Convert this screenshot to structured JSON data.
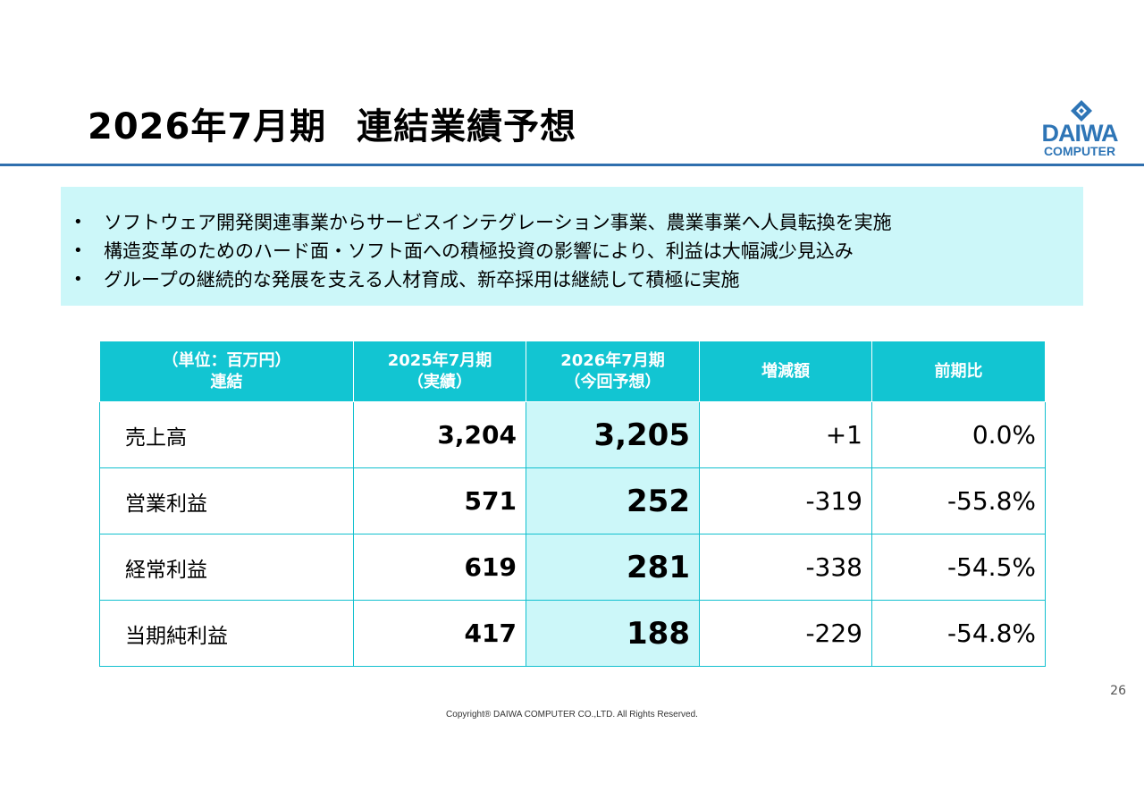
{
  "title": {
    "period": "2026年7月期",
    "subject": "連結業績予想"
  },
  "logo": {
    "main": "DAIWA",
    "sub": "COMPUTER",
    "color": "#2e75b6"
  },
  "summary": {
    "background": "#ccf7f9",
    "bullet": "•",
    "points": [
      "ソフトウェア開発関連事業からサービスインテグレーション事業、農業事業へ人員転換を実施",
      "構造変革のためのハード面・ソフト面への積極投資の影響により、利益は大幅減少見込み",
      "グループの継続的な発展を支える人材育成、新卒採用は継続して積極に実施"
    ]
  },
  "table": {
    "header_color": "#12c5d2",
    "forecast_color": "#ccf7f9",
    "headers": [
      {
        "line1": "（単位：百万円）",
        "line2": "連結"
      },
      {
        "line1": "2025年7月期",
        "line2": "（実績）"
      },
      {
        "line1": "2026年7月期",
        "line2": "（今回予想）"
      },
      {
        "line1": "増減額",
        "line2": ""
      },
      {
        "line1": "前期比",
        "line2": ""
      }
    ],
    "rows": [
      {
        "label": "売上高",
        "actual": "3,204",
        "forecast": "3,205",
        "change": "+1",
        "ratio": "0.0%"
      },
      {
        "label": "営業利益",
        "actual": "571",
        "forecast": "252",
        "change": "-319",
        "ratio": "-55.8%"
      },
      {
        "label": "経常利益",
        "actual": "619",
        "forecast": "281",
        "change": "-338",
        "ratio": "-54.5%"
      },
      {
        "label": "当期純利益",
        "actual": "417",
        "forecast": "188",
        "change": "-229",
        "ratio": "-54.8%"
      }
    ]
  },
  "footer": {
    "page_number": "26",
    "copyright": "Copyright® DAIWA COMPUTER CO.,LTD. All Rights Reserved."
  }
}
